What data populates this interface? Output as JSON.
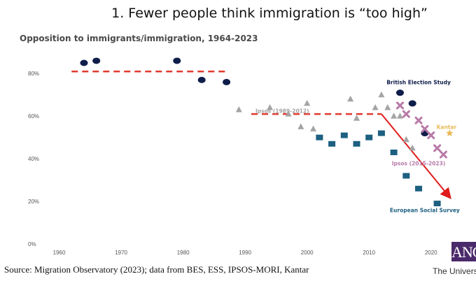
{
  "slide_title": "1. Fewer people think immigration is “too high”",
  "source": "Source: Migration Observatory (2023); data from BES, ESS, IPSOS-MORI, Kantar",
  "logo": {
    "text": "ANC",
    "caption": "The University"
  },
  "colors": {
    "bes": "#0f1d4a",
    "ipsos_1989_2012": "#a4a4a4",
    "ipsos_2015_2023": "#b87aa8",
    "ess": "#1c5f80",
    "kantar": "#e8b955",
    "trend_dashed": "#e03a2f",
    "trend_arrow": "#e01b1b"
  },
  "chart_data": {
    "type": "scatter",
    "title": "Opposition to immigrants/immigration, 1964-2023",
    "xlim": [
      1957,
      2025
    ],
    "ylim": [
      0,
      85
    ],
    "x_ticks": [
      1960,
      1970,
      1980,
      1990,
      2000,
      2010,
      2020
    ],
    "y_ticks": [
      0,
      20,
      40,
      60,
      80
    ],
    "y_tick_labels": [
      "0%",
      "20%",
      "40%",
      "60%",
      "80%"
    ],
    "series": [
      {
        "name": "British Election Study",
        "marker": "circle",
        "color_key": "bes",
        "points": [
          [
            1964,
            85
          ],
          [
            1966,
            86
          ],
          [
            1979,
            86
          ],
          [
            1983,
            77
          ],
          [
            1987,
            76
          ],
          [
            2015,
            71
          ],
          [
            2017,
            66
          ],
          [
            2019,
            52
          ]
        ]
      },
      {
        "name": "Ipsos (1989-2012)",
        "marker": "triangle",
        "color_key": "ipsos_1989_2012",
        "points": [
          [
            1989,
            63
          ],
          [
            1994,
            64
          ],
          [
            1997,
            61
          ],
          [
            1999,
            55
          ],
          [
            2000,
            66
          ],
          [
            2001,
            54
          ],
          [
            2007,
            68
          ],
          [
            2008,
            59
          ],
          [
            2011,
            64
          ],
          [
            2012,
            70
          ],
          [
            2013,
            64
          ],
          [
            2014,
            60
          ],
          [
            2015,
            60
          ],
          [
            2016,
            49
          ],
          [
            2017,
            45
          ]
        ]
      },
      {
        "name": "Ipsos (2015-2023)",
        "marker": "x",
        "color_key": "ipsos_2015_2023",
        "points": [
          [
            2015,
            65
          ],
          [
            2016,
            61
          ],
          [
            2018,
            58
          ],
          [
            2019,
            54
          ],
          [
            2020,
            51
          ],
          [
            2021,
            45
          ],
          [
            2022,
            42
          ]
        ]
      },
      {
        "name": "European Social Survey",
        "marker": "square",
        "color_key": "ess",
        "points": [
          [
            2002,
            50
          ],
          [
            2004,
            47
          ],
          [
            2006,
            51
          ],
          [
            2008,
            47
          ],
          [
            2010,
            50
          ],
          [
            2012,
            52
          ],
          [
            2014,
            43
          ],
          [
            2016,
            32
          ],
          [
            2018,
            26
          ],
          [
            2021,
            19
          ]
        ]
      },
      {
        "name": "Kantar",
        "marker": "star",
        "color_key": "kantar",
        "points": [
          [
            2023,
            52
          ]
        ]
      }
    ],
    "annotations": [
      {
        "type": "dashed_line",
        "color_key": "trend_dashed",
        "from": [
          1962,
          81
        ],
        "to": [
          1987,
          81
        ]
      },
      {
        "type": "dashed_line",
        "color_key": "trend_dashed",
        "from": [
          1991,
          61
        ],
        "to": [
          2012,
          61
        ]
      },
      {
        "type": "arrow",
        "color_key": "trend_arrow",
        "from": [
          2012,
          61
        ],
        "to": [
          2023,
          22
        ]
      }
    ],
    "series_labels": [
      {
        "text": "British Election Study",
        "anchor_x": 2018,
        "anchor_y": 75,
        "color_key": "bes"
      },
      {
        "text": "Ipsos (1989-2012)",
        "anchor_x": 1996,
        "anchor_y": 61.5,
        "color_key": "ipsos_1989_2012"
      },
      {
        "text": "Kantar",
        "anchor_x": 2022.5,
        "anchor_y": 54,
        "color_key": "kantar"
      },
      {
        "text": "Ipsos (2015-2023)",
        "anchor_x": 2018,
        "anchor_y": 37,
        "color_key": "ipsos_2015_2023"
      },
      {
        "text": "European Social Survey",
        "anchor_x": 2019,
        "anchor_y": 15,
        "color_key": "ess"
      }
    ]
  }
}
